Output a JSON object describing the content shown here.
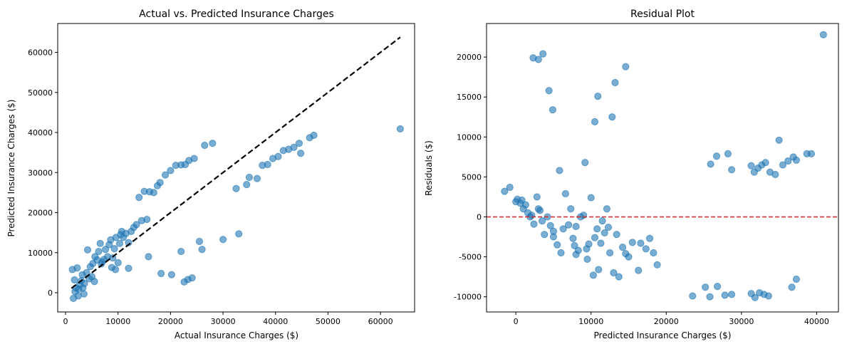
{
  "chart_data": [
    {
      "type": "scatter",
      "title": "Actual vs. Predicted Insurance Charges",
      "xlabel": "Actual Insurance Charges ($)",
      "ylabel": "Predicted Insurance Charges ($)",
      "xlim": [
        -1500,
        66500
      ],
      "ylim": [
        -4800,
        67200
      ],
      "xticks": [
        0,
        10000,
        20000,
        30000,
        40000,
        50000,
        60000
      ],
      "yticks": [
        0,
        10000,
        20000,
        30000,
        40000,
        50000,
        60000
      ],
      "grid": false,
      "point_color": "#1f77b4",
      "line_color": "#000000",
      "reference_line": {
        "x": [
          1121,
          63770
        ],
        "y": [
          1121,
          63770
        ],
        "style": "dashed"
      },
      "points": [
        [
          1300,
          5800
        ],
        [
          1500,
          -1400
        ],
        [
          1800,
          300
        ],
        [
          2000,
          1200
        ],
        [
          2200,
          6200
        ],
        [
          2500,
          900
        ],
        [
          2700,
          2000
        ],
        [
          3000,
          3000
        ],
        [
          3200,
          4500
        ],
        [
          3500,
          -300
        ],
        [
          3600,
          2300
        ],
        [
          4000,
          5000
        ],
        [
          4200,
          10700
        ],
        [
          4500,
          3500
        ],
        [
          4700,
          6500
        ],
        [
          5000,
          4000
        ],
        [
          5200,
          7300
        ],
        [
          5600,
          9000
        ],
        [
          6000,
          8200
        ],
        [
          6300,
          10300
        ],
        [
          6600,
          12300
        ],
        [
          7000,
          7700
        ],
        [
          7300,
          8300
        ],
        [
          7600,
          10800
        ],
        [
          8000,
          9000
        ],
        [
          8300,
          12000
        ],
        [
          8600,
          13200
        ],
        [
          9000,
          8700
        ],
        [
          9300,
          11000
        ],
        [
          9600,
          13800
        ],
        [
          10000,
          7500
        ],
        [
          10300,
          12300
        ],
        [
          10700,
          15300
        ],
        [
          11000,
          13800
        ],
        [
          11500,
          14800
        ],
        [
          12000,
          12500
        ],
        [
          12500,
          15300
        ],
        [
          13000,
          16300
        ],
        [
          13500,
          17000
        ],
        [
          14000,
          23800
        ],
        [
          14500,
          18000
        ],
        [
          15000,
          25300
        ],
        [
          15500,
          18300
        ],
        [
          16000,
          25200
        ],
        [
          16800,
          25000
        ],
        [
          17500,
          26700
        ],
        [
          18000,
          27500
        ],
        [
          19000,
          29400
        ],
        [
          20000,
          30500
        ],
        [
          21000,
          31800
        ],
        [
          22000,
          31900
        ],
        [
          22800,
          32000
        ],
        [
          23500,
          33000
        ],
        [
          24500,
          33500
        ],
        [
          26500,
          36800
        ],
        [
          28000,
          37300
        ],
        [
          32500,
          26000
        ],
        [
          33000,
          14700
        ],
        [
          34500,
          27000
        ],
        [
          35000,
          28800
        ],
        [
          36500,
          28500
        ],
        [
          37500,
          31800
        ],
        [
          38500,
          32000
        ],
        [
          39500,
          33500
        ],
        [
          40500,
          34000
        ],
        [
          41500,
          35500
        ],
        [
          42500,
          35800
        ],
        [
          43500,
          36300
        ],
        [
          44500,
          37300
        ],
        [
          44800,
          34800
        ],
        [
          46500,
          38700
        ],
        [
          47300,
          39300
        ],
        [
          63770,
          40900
        ],
        [
          15800,
          9000
        ],
        [
          18200,
          4800
        ],
        [
          20200,
          4500
        ],
        [
          22000,
          10300
        ],
        [
          22600,
          2700
        ],
        [
          23300,
          3300
        ],
        [
          24100,
          3700
        ],
        [
          25500,
          12800
        ],
        [
          26000,
          10800
        ],
        [
          30000,
          13300
        ],
        [
          12000,
          6100
        ],
        [
          9500,
          5800
        ],
        [
          6800,
          7200
        ],
        [
          3300,
          1200
        ],
        [
          2400,
          -800
        ],
        [
          1700,
          3200
        ],
        [
          5500,
          2800
        ],
        [
          8800,
          6300
        ],
        [
          10500,
          14500
        ]
      ]
    },
    {
      "type": "scatter",
      "title": "Residual Plot",
      "xlabel": "Predicted Insurance Charges ($)",
      "ylabel": "Residuals ($)",
      "xlim": [
        -3900,
        42900
      ],
      "ylim": [
        -11900,
        24200
      ],
      "xticks": [
        0,
        10000,
        20000,
        30000,
        40000
      ],
      "yticks": [
        -10000,
        -5000,
        0,
        5000,
        10000,
        15000,
        20000
      ],
      "grid": false,
      "point_color": "#1f77b4",
      "line_color": "#d62728",
      "reference_line": {
        "y": 0,
        "style": "dashed"
      },
      "points": [
        [
          -1500,
          3200
        ],
        [
          -800,
          3700
        ],
        [
          0,
          1900
        ],
        [
          200,
          2200
        ],
        [
          600,
          1700
        ],
        [
          800,
          2100
        ],
        [
          1000,
          1000
        ],
        [
          1300,
          1500
        ],
        [
          1600,
          500
        ],
        [
          1900,
          0
        ],
        [
          2100,
          200
        ],
        [
          2400,
          -900
        ],
        [
          2800,
          2500
        ],
        [
          3000,
          1000
        ],
        [
          3200,
          800
        ],
        [
          3500,
          -500
        ],
        [
          3800,
          -2200
        ],
        [
          4200,
          0
        ],
        [
          4600,
          -1100
        ],
        [
          5000,
          -2500
        ],
        [
          5500,
          -3500
        ],
        [
          5800,
          5800
        ],
        [
          6000,
          -4500
        ],
        [
          6300,
          -1500
        ],
        [
          6600,
          2900
        ],
        [
          7000,
          -1000
        ],
        [
          7300,
          1000
        ],
        [
          7600,
          -2700
        ],
        [
          8000,
          -1200
        ],
        [
          8300,
          -4200
        ],
        [
          8600,
          0
        ],
        [
          9000,
          200
        ],
        [
          9200,
          6800
        ],
        [
          9400,
          -4000
        ],
        [
          9700,
          -3400
        ],
        [
          10000,
          2400
        ],
        [
          10300,
          -7300
        ],
        [
          10500,
          -2600
        ],
        [
          10800,
          -1500
        ],
        [
          11000,
          -6600
        ],
        [
          11300,
          -3300
        ],
        [
          11500,
          -500
        ],
        [
          11800,
          -2000
        ],
        [
          12100,
          1000
        ],
        [
          12500,
          -4500
        ],
        [
          12800,
          12500
        ],
        [
          13000,
          -7000
        ],
        [
          13400,
          -2200
        ],
        [
          13700,
          -7500
        ],
        [
          14200,
          -3800
        ],
        [
          14600,
          -4600
        ],
        [
          15000,
          -5000
        ],
        [
          15500,
          -3200
        ],
        [
          16300,
          -6700
        ],
        [
          16600,
          -3300
        ],
        [
          17300,
          -4000
        ],
        [
          17800,
          -2700
        ],
        [
          18300,
          -4500
        ],
        [
          18800,
          -6000
        ],
        [
          2300,
          19900
        ],
        [
          3000,
          19700
        ],
        [
          3600,
          20400
        ],
        [
          4400,
          15800
        ],
        [
          4900,
          13400
        ],
        [
          10500,
          11900
        ],
        [
          10900,
          15100
        ],
        [
          13200,
          16800
        ],
        [
          14600,
          18800
        ],
        [
          23500,
          -9900
        ],
        [
          25200,
          -8800
        ],
        [
          25800,
          -10000
        ],
        [
          26800,
          -8700
        ],
        [
          27800,
          -9800
        ],
        [
          28700,
          -9700
        ],
        [
          31300,
          -9600
        ],
        [
          31800,
          -10100
        ],
        [
          32400,
          -9500
        ],
        [
          33000,
          -9700
        ],
        [
          33600,
          -9900
        ],
        [
          36700,
          -8800
        ],
        [
          37300,
          -7800
        ],
        [
          25900,
          6600
        ],
        [
          26700,
          7600
        ],
        [
          28200,
          7900
        ],
        [
          28700,
          5900
        ],
        [
          31300,
          6400
        ],
        [
          31700,
          5600
        ],
        [
          32200,
          6100
        ],
        [
          32700,
          6500
        ],
        [
          33200,
          6800
        ],
        [
          33800,
          5600
        ],
        [
          34500,
          5300
        ],
        [
          35000,
          9600
        ],
        [
          35500,
          6500
        ],
        [
          36200,
          7000
        ],
        [
          36900,
          7500
        ],
        [
          37300,
          7100
        ],
        [
          38700,
          7900
        ],
        [
          39300,
          7900
        ],
        [
          40900,
          22800
        ],
        [
          5000,
          -1800
        ],
        [
          7800,
          -3600
        ],
        [
          9500,
          -5300
        ],
        [
          12300,
          -1300
        ],
        [
          8000,
          -4700
        ]
      ]
    }
  ]
}
